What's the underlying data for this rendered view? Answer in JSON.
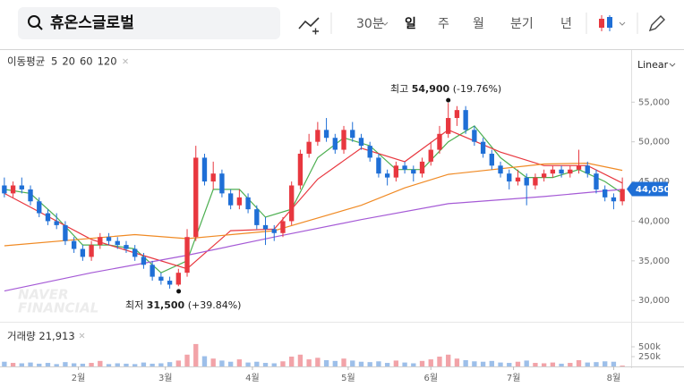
{
  "toolbar": {
    "search": "휴온스글로벌",
    "intervals": [
      "30분",
      "일",
      "주",
      "월",
      "분기",
      "년"
    ]
  },
  "chart_data": {
    "type": "candlestick",
    "scale_label": "Linear",
    "ma_label": "이동평균",
    "watermark": [
      "NAVER",
      "FINANCIAL"
    ],
    "up_color": "#e8373f",
    "down_color": "#1f6fd6",
    "open": [
      44500,
      43500,
      44500,
      44000,
      42500,
      41000,
      40000,
      39500,
      37500,
      36500,
      35500,
      37000,
      38000,
      37500,
      37000,
      36500,
      35500,
      34500,
      33000,
      32500,
      32000,
      33500,
      38000,
      48000,
      45000,
      46000,
      43500,
      42000,
      43000,
      41500,
      39500,
      39000,
      38500,
      40000,
      44500,
      48500,
      50000,
      51500,
      50500,
      49000,
      51500,
      50500,
      49500,
      48000,
      46000,
      45500,
      47000,
      46500,
      46000,
      47500,
      49000,
      51000,
      53000,
      54000,
      51500,
      50000,
      48500,
      47000,
      46000,
      45000,
      45500,
      44500,
      45500,
      46000,
      46500,
      46000,
      46500,
      47000,
      46000,
      44000,
      43000,
      42500
    ],
    "high": [
      45500,
      45000,
      45500,
      44500,
      43000,
      41500,
      41000,
      40000,
      38000,
      37000,
      37500,
      38500,
      38500,
      38000,
      37500,
      37000,
      36000,
      35000,
      33500,
      33000,
      34000,
      39000,
      49500,
      48500,
      47500,
      46500,
      44000,
      44000,
      43500,
      42000,
      40500,
      39500,
      40500,
      45000,
      49000,
      51000,
      52500,
      53000,
      51000,
      52000,
      52500,
      51000,
      50000,
      48500,
      46500,
      47500,
      47500,
      47000,
      48000,
      50000,
      52000,
      54900,
      54500,
      54500,
      52000,
      50500,
      49000,
      47500,
      46500,
      46500,
      46000,
      46000,
      46500,
      47000,
      47000,
      47000,
      49000,
      47500,
      46500,
      44500,
      43500,
      45500
    ],
    "low": [
      43000,
      43000,
      43500,
      42000,
      40500,
      39500,
      39000,
      37000,
      36000,
      35000,
      35000,
      36500,
      37000,
      36500,
      36000,
      35000,
      34000,
      32500,
      32000,
      31500,
      31800,
      33000,
      37500,
      44500,
      44000,
      43000,
      41500,
      41500,
      41000,
      39000,
      37000,
      37500,
      38000,
      39500,
      44000,
      48000,
      49500,
      50000,
      48500,
      48500,
      50000,
      49000,
      47500,
      45500,
      44500,
      45000,
      46000,
      45000,
      45500,
      47000,
      48500,
      50500,
      52000,
      51000,
      49500,
      48000,
      46500,
      45500,
      44000,
      44500,
      42000,
      44000,
      45000,
      45500,
      45500,
      45500,
      46000,
      45500,
      43500,
      42500,
      41500,
      42000
    ],
    "close": [
      43500,
      44500,
      44000,
      42500,
      41000,
      40000,
      39500,
      37500,
      36500,
      35500,
      37000,
      38000,
      37500,
      37000,
      36500,
      35500,
      34500,
      33000,
      32500,
      32000,
      33500,
      38000,
      48000,
      45000,
      46000,
      43500,
      42000,
      43000,
      41500,
      39500,
      39000,
      38500,
      40000,
      44500,
      48500,
      50000,
      51500,
      50500,
      49000,
      51500,
      50500,
      49500,
      48000,
      46000,
      45500,
      47000,
      46500,
      46000,
      47500,
      49000,
      51000,
      53000,
      54000,
      51500,
      50000,
      48500,
      47000,
      46000,
      45000,
      45500,
      44500,
      45500,
      46000,
      46500,
      46000,
      46500,
      47000,
      46000,
      44000,
      43000,
      42500,
      44050
    ],
    "last_label": "44,050",
    "xlim": [
      -0.5,
      71.5
    ],
    "xticks": [
      {
        "value": 8.5,
        "label": "2월"
      },
      {
        "value": 18.5,
        "label": "3월"
      },
      {
        "value": 28.5,
        "label": "4월"
      },
      {
        "value": 39.5,
        "label": "5월"
      },
      {
        "value": 49,
        "label": "6월"
      },
      {
        "value": 58.5,
        "label": "7월"
      },
      {
        "value": 70,
        "label": "8월"
      }
    ],
    "ylim": [
      28000,
      61000
    ],
    "yticks": [
      {
        "value": 30000,
        "label": "30,000"
      },
      {
        "value": 35000,
        "label": "35,000"
      },
      {
        "value": 40000,
        "label": "40,000"
      },
      {
        "value": 45000,
        "label": "45,000"
      },
      {
        "value": 50000,
        "label": "50,000"
      },
      {
        "value": 55000,
        "label": "55,000"
      }
    ],
    "high_note": {
      "label": "최고",
      "value": "54,900",
      "change": "(-19.76%)"
    },
    "low_note": {
      "label": "최저",
      "value": "31,500",
      "change": "(+39.84%)"
    },
    "moving_averages": [
      {
        "name": "5",
        "color": "#4caf50",
        "x": [
          0,
          3,
          6,
          9,
          12,
          15,
          18,
          21,
          24,
          27,
          30,
          33,
          36,
          39,
          42,
          45,
          48,
          51,
          54,
          57,
          60,
          63,
          66,
          69,
          71
        ],
        "values": [
          44000,
          43500,
          40500,
          37000,
          37000,
          36500,
          33500,
          35000,
          44000,
          44000,
          40500,
          41500,
          48000,
          50500,
          49500,
          46500,
          46500,
          50000,
          52000,
          48000,
          45500,
          45500,
          46500,
          45000,
          43500
        ]
      },
      {
        "name": "20",
        "color": "#e8373f",
        "x": [
          0,
          10,
          15,
          21,
          26,
          31,
          36,
          41,
          46,
          51,
          57,
          62,
          67,
          71
        ],
        "values": [
          43500,
          37700,
          36000,
          34000,
          38800,
          39000,
          45300,
          49200,
          47500,
          51500,
          48700,
          47000,
          47000,
          44800
        ]
      },
      {
        "name": "60",
        "color": "#f08a24",
        "x": [
          0,
          15,
          21,
          31,
          41,
          46,
          51,
          62,
          67,
          71
        ],
        "values": [
          36900,
          38300,
          37800,
          38800,
          42000,
          44200,
          45900,
          47200,
          47300,
          46400
        ]
      },
      {
        "name": "120",
        "color": "#a55ad6",
        "x": [
          0,
          10,
          21,
          31,
          41,
          51,
          62,
          71
        ],
        "values": [
          31200,
          33500,
          35700,
          38000,
          40200,
          42200,
          43100,
          44000
        ]
      }
    ],
    "volume": {
      "label": "거래량",
      "latest": "21,913",
      "values": [
        120000,
        90000,
        80000,
        100000,
        70000,
        90000,
        60000,
        110000,
        80000,
        70000,
        90000,
        140000,
        60000,
        80000,
        70000,
        60000,
        100000,
        70000,
        80000,
        110000,
        150000,
        300000,
        570000,
        260000,
        200000,
        150000,
        120000,
        180000,
        100000,
        120000,
        90000,
        80000,
        130000,
        250000,
        300000,
        180000,
        220000,
        160000,
        140000,
        200000,
        150000,
        120000,
        110000,
        130000,
        90000,
        150000,
        100000,
        80000,
        140000,
        180000,
        250000,
        300000,
        200000,
        160000,
        130000,
        120000,
        140000,
        100000,
        90000,
        120000,
        150000,
        90000,
        80000,
        100000,
        70000,
        90000,
        160000,
        100000,
        110000,
        130000,
        120000,
        21913
      ],
      "up_color": "#f2a3a8",
      "down_color": "#9dbfe9",
      "ylim": [
        0,
        1000000
      ],
      "yticks": [
        {
          "value": 250000,
          "label": "250k"
        },
        {
          "value": 500000,
          "label": "500k"
        }
      ]
    }
  }
}
